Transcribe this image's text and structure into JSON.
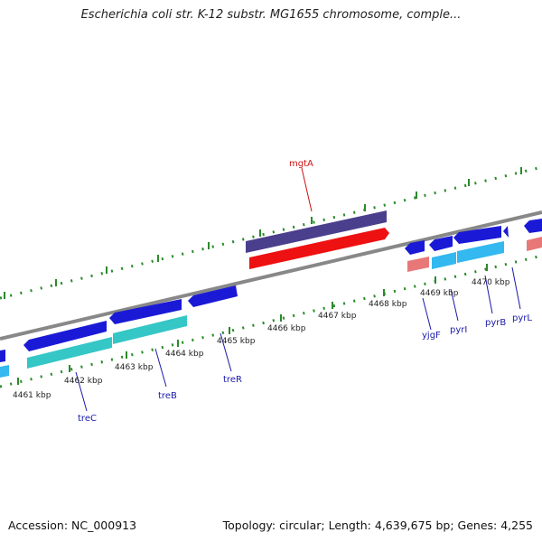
{
  "title": "Escherichia coli str. K-12 substr. MG1655 chromosome, comple...",
  "footer": {
    "accession": "Accession: NC_000913",
    "summary": "Topology: circular; Length: 4,639,675 bp; Genes: 4,255"
  },
  "ticks": [
    "4461 kbp",
    "4462 kbp",
    "4463 kbp",
    "4464 kbp",
    "4465 kbp",
    "4466 kbp",
    "4467 kbp",
    "4468 kbp",
    "4469 kbp",
    "4470 kbp"
  ],
  "genes": {
    "mgtA": "mgtA",
    "treC": "treC",
    "treB": "treB",
    "treR": "treR",
    "yjgF": "yjgF",
    "pyrI": "pyrI",
    "pyrB": "pyrB",
    "pyrL": "pyrL"
  },
  "colors": {
    "gene_blue": "#1a1ad6",
    "cds_cyan": "#35c6c6",
    "cds_sky": "#33b8ef",
    "mgtA_gene": "#4a3f8c",
    "mgtA_cds": "#ee1111",
    "pink_cds": "#e87878",
    "tick_green": "#2a8a2a",
    "label_blue": "#1a1aaa",
    "label_red": "#cc1111",
    "backbone": "#888888"
  }
}
